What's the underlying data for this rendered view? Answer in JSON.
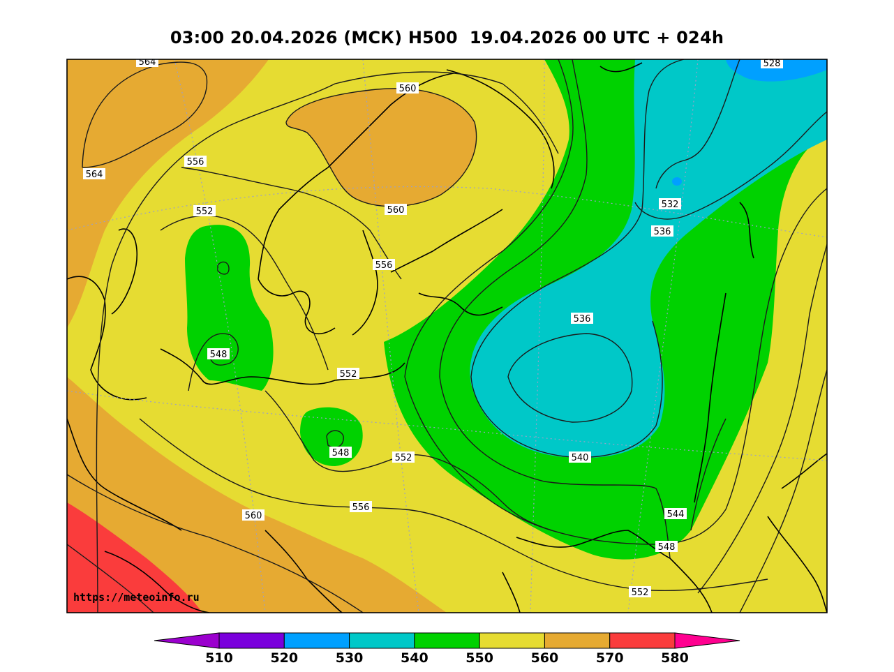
{
  "title": "03:00 20.04.2026 (МСК) H500  19.04.2026 00 UTC + 024h",
  "watermark": "https://meteoinfo.ru",
  "colorbar": {
    "ticks": [
      "510",
      "520",
      "530",
      "540",
      "550",
      "560",
      "570",
      "580"
    ],
    "colors": [
      "#9b00ce",
      "#7a00dc",
      "#00a0ff",
      "#00c8c8",
      "#00d200",
      "#e6dc32",
      "#e6aa32",
      "#fa3c3c",
      "#ff0090"
    ]
  },
  "contour_labels": [
    {
      "name": "label-564-top",
      "text": "564"
    },
    {
      "name": "label-560-scandinavia",
      "text": "560"
    },
    {
      "name": "label-528",
      "text": "528"
    },
    {
      "name": "label-564-left",
      "text": "564"
    },
    {
      "name": "label-556-north",
      "text": "556"
    },
    {
      "name": "label-552-west",
      "text": "552"
    },
    {
      "name": "label-560-mid",
      "text": "560"
    },
    {
      "name": "label-532",
      "text": "532"
    },
    {
      "name": "label-536-east",
      "text": "536"
    },
    {
      "name": "label-556-sweden",
      "text": "556"
    },
    {
      "name": "label-536-center",
      "text": "536"
    },
    {
      "name": "label-548-northsea",
      "text": "548"
    },
    {
      "name": "label-552-baltic",
      "text": "552"
    },
    {
      "name": "label-548-poland",
      "text": "548"
    },
    {
      "name": "label-552-central",
      "text": "552"
    },
    {
      "name": "label-540",
      "text": "540"
    },
    {
      "name": "label-556-south",
      "text": "556"
    },
    {
      "name": "label-560-south",
      "text": "560"
    },
    {
      "name": "label-544",
      "text": "544"
    },
    {
      "name": "label-548-east",
      "text": "548"
    },
    {
      "name": "label-552-southeast",
      "text": "552"
    }
  ]
}
